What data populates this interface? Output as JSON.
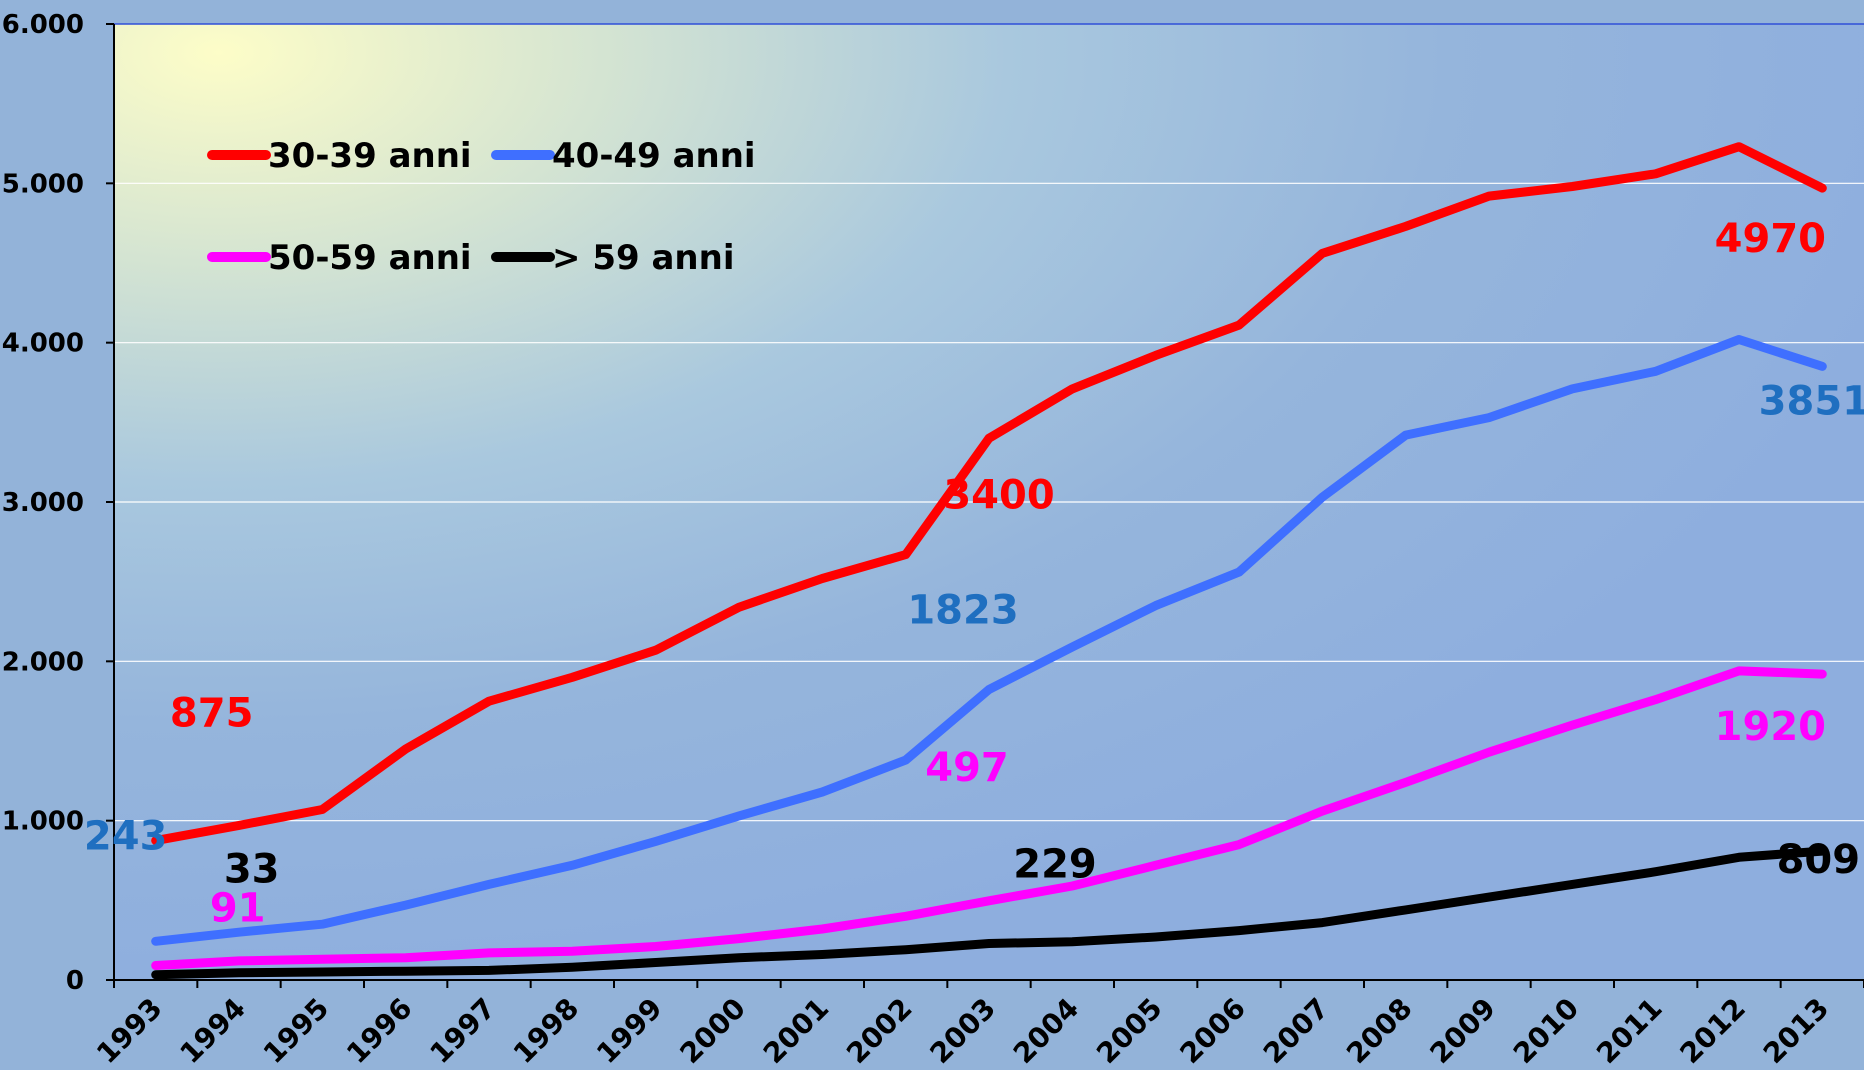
{
  "chart_data": {
    "type": "line",
    "x": [
      "1993",
      "1994",
      "1995",
      "1996",
      "1997",
      "1998",
      "1999",
      "2000",
      "2001",
      "2002",
      "2003",
      "2004",
      "2005",
      "2006",
      "2007",
      "2008",
      "2009",
      "2010",
      "2011",
      "2012",
      "2013"
    ],
    "ylim": [
      0,
      6000
    ],
    "yticks": [
      0,
      1000,
      2000,
      3000,
      4000,
      5000,
      6000
    ],
    "ytick_labels": [
      "0",
      "1.000",
      "2.000",
      "3.000",
      "4.000",
      "5.000",
      "6.000"
    ],
    "grid": true,
    "legend_position": "top-left",
    "series": [
      {
        "name": "30-39 anni",
        "color": "#ff0000",
        "values": [
          875,
          970,
          1070,
          1450,
          1750,
          1900,
          2070,
          2340,
          2520,
          2670,
          3400,
          3710,
          3920,
          4110,
          4560,
          4730,
          4920,
          4980,
          5060,
          5230,
          4970
        ]
      },
      {
        "name": "40-49 anni",
        "color": "#3f6fff",
        "values": [
          243,
          300,
          350,
          470,
          600,
          720,
          870,
          1030,
          1180,
          1380,
          1823,
          2090,
          2350,
          2560,
          3030,
          3420,
          3530,
          3710,
          3820,
          4020,
          3851
        ]
      },
      {
        "name": "50-59 anni",
        "color": "#ff00ff",
        "values": [
          91,
          120,
          130,
          140,
          170,
          180,
          210,
          260,
          320,
          400,
          497,
          590,
          720,
          850,
          1060,
          1240,
          1430,
          1600,
          1760,
          1940,
          1920
        ]
      },
      {
        "name": "> 59 anni",
        "color": "#000000",
        "values": [
          33,
          45,
          50,
          55,
          60,
          80,
          110,
          140,
          160,
          190,
          229,
          240,
          270,
          310,
          360,
          440,
          520,
          600,
          680,
          770,
          809
        ]
      }
    ],
    "annotations": [
      {
        "text": "875",
        "series": 0,
        "index": 0,
        "color": "#ff0000"
      },
      {
        "text": "3400",
        "series": 0,
        "index": 10,
        "color": "#ff0000"
      },
      {
        "text": "4970",
        "series": 0,
        "index": 20,
        "color": "#ff0000"
      },
      {
        "text": "243",
        "series": 1,
        "index": 0,
        "color": "#1f6fc0"
      },
      {
        "text": "1823",
        "series": 1,
        "index": 10,
        "color": "#1f6fc0"
      },
      {
        "text": "3851",
        "series": 1,
        "index": 20,
        "color": "#1f6fc0"
      },
      {
        "text": "91",
        "series": 2,
        "index": 0,
        "color": "#ff00ff"
      },
      {
        "text": "497",
        "series": 2,
        "index": 10,
        "color": "#ff00ff"
      },
      {
        "text": "1920",
        "series": 2,
        "index": 20,
        "color": "#ff00ff"
      },
      {
        "text": "33",
        "series": 3,
        "index": 0,
        "color": "#000000"
      },
      {
        "text": "229",
        "series": 3,
        "index": 10,
        "color": "#000000"
      },
      {
        "text": "809",
        "series": 3,
        "index": 20,
        "color": "#000000"
      }
    ]
  }
}
